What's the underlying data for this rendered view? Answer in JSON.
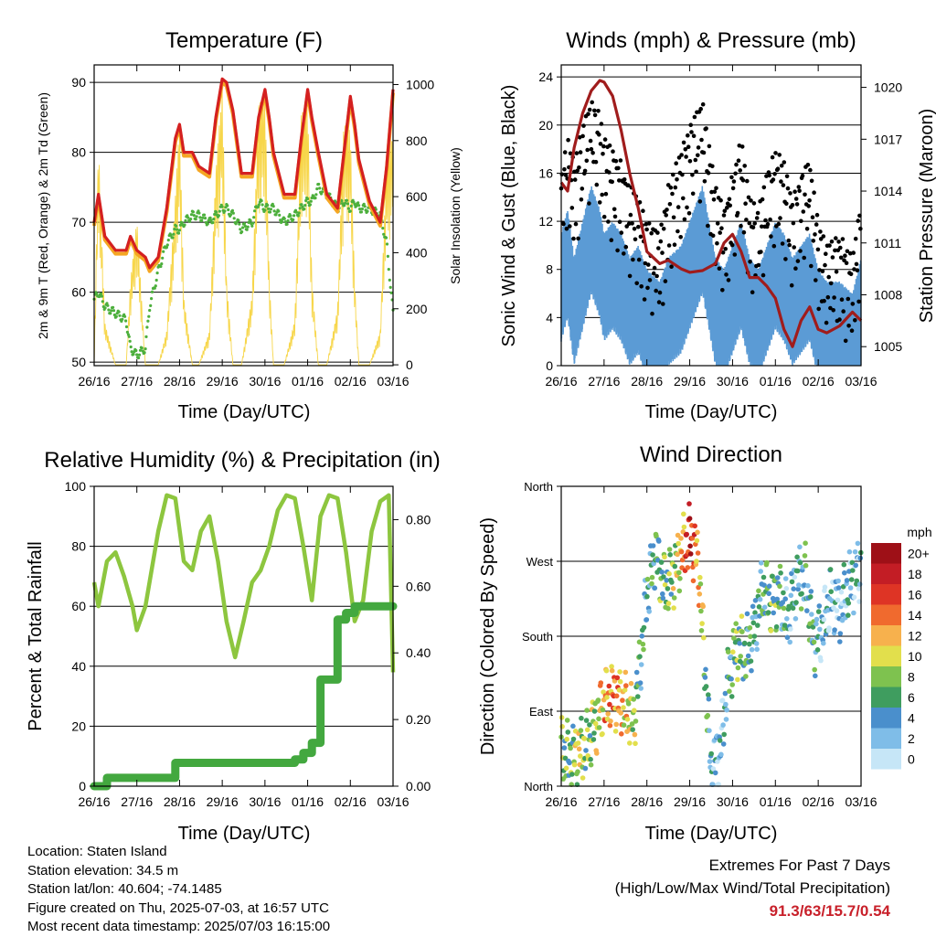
{
  "colors": {
    "temp_red": "#d42020",
    "temp_orange": "#f5a623",
    "dewpoint_green": "#4caf3c",
    "solar_yellow": "#f7d64a",
    "wind_blue": "#5b9bd5",
    "gust_black": "#000000",
    "pressure_maroon": "#a01c1c",
    "rh_lightgreen": "#8dc63f",
    "precip_green": "#43a83f",
    "extremes_red": "#c8202a"
  },
  "time_ticks": [
    "26/16",
    "27/16",
    "28/16",
    "29/16",
    "30/16",
    "01/16",
    "02/16",
    "03/16"
  ],
  "info": {
    "location": "Location: Staten Island",
    "elevation": "Station elevation: 34.5 m",
    "latlon": "Station lat/lon: 40.604; -74.1485",
    "created": "Figure created on Thu, 2025-07-03, at 16:57 UTC",
    "recent": "Most recent data timestamp: 2025/07/03 16:15:00"
  },
  "extremes": {
    "title": "Extremes For Past 7 Days",
    "subtitle": "(High/Low/Max Wind/Total Precipitation)",
    "values": "91.3/63/15.7/0.54"
  },
  "chart_data": [
    {
      "type": "line",
      "title": "Temperature (F)",
      "xlabel": "Time (Day/UTC)",
      "ylabel": "2m & 9m T (Red, Orange) & 2m Td (Green)",
      "y2label": "Solar Insolation (Yellow)",
      "ylim": [
        49.5,
        92.5
      ],
      "y2lim": [
        -3,
        1070
      ],
      "yticks": [
        "50",
        "60",
        "70",
        "80",
        "90"
      ],
      "y2ticks": [
        "0",
        "200",
        "400",
        "600",
        "800",
        "1000"
      ],
      "x": [
        0,
        0.1,
        0.25,
        0.5,
        0.75,
        0.85,
        1.0,
        1.2,
        1.3,
        1.5,
        1.7,
        1.9,
        2.0,
        2.1,
        2.3,
        2.45,
        2.7,
        2.85,
        3.0,
        3.1,
        3.25,
        3.45,
        3.7,
        3.85,
        4.0,
        4.1,
        4.2,
        4.45,
        4.7,
        4.85,
        5.0,
        5.1,
        5.25,
        5.45,
        5.7,
        5.85,
        6.0,
        6.1,
        6.2,
        6.45,
        6.7,
        6.85,
        7.0
      ],
      "series": [
        {
          "name": "2m T",
          "values": [
            70,
            74,
            68,
            66,
            66,
            68,
            66,
            65,
            63.5,
            65,
            72,
            82,
            84,
            80,
            80,
            78,
            77,
            85,
            90.5,
            90,
            86,
            77,
            77,
            85,
            89,
            85,
            80,
            74,
            74,
            82,
            89,
            85,
            80,
            74,
            72,
            80,
            88,
            84,
            79,
            73,
            70,
            78,
            89
          ]
        },
        {
          "name": "9m T",
          "values": [
            69.5,
            73.5,
            67.5,
            65.5,
            65.5,
            67.5,
            65.5,
            64.5,
            63,
            64.5,
            71.5,
            81.5,
            83.5,
            79.5,
            79.5,
            77.5,
            76.5,
            84.5,
            90,
            89.5,
            85.5,
            76.5,
            76.5,
            84.5,
            88.5,
            84.5,
            79.5,
            73.5,
            73.5,
            81.5,
            88.5,
            84.5,
            79.5,
            73.5,
            71.5,
            79.5,
            87.5,
            83.5,
            78.5,
            72.5,
            69.5,
            77.5,
            88.5
          ]
        },
        {
          "name": "2m Td",
          "values": [
            59,
            60,
            58,
            57,
            56,
            52,
            51,
            52,
            58,
            63,
            67,
            69,
            69,
            70,
            71,
            71,
            70,
            71,
            72,
            72,
            71,
            69,
            70,
            73,
            72,
            72,
            72,
            70,
            71,
            72,
            73,
            73,
            75,
            74,
            72,
            73,
            72,
            73,
            72,
            72,
            71,
            67,
            57
          ]
        },
        {
          "name": "Solar",
          "values": [
            0,
            800,
            150,
            0,
            0,
            300,
            520,
            0,
            0,
            0,
            120,
            600,
            880,
            240,
            0,
            0,
            120,
            700,
            1000,
            300,
            0,
            0,
            250,
            930,
            960,
            320,
            0,
            0,
            160,
            900,
            940,
            300,
            0,
            0,
            200,
            880,
            840,
            300,
            0,
            0,
            120,
            740,
            840
          ]
        }
      ]
    },
    {
      "type": "line",
      "title": "Winds (mph) & Pressure (mb)",
      "xlabel": "Time (Day/UTC)",
      "ylabel": "Sonic Wind & Gust (Blue, Black)",
      "y2label": "Station Pressure (Maroon)",
      "ylim": [
        0,
        25
      ],
      "y2lim": [
        1003.9,
        1021.3
      ],
      "yticks": [
        "0",
        "4",
        "8",
        "12",
        "16",
        "20",
        "24"
      ],
      "y2ticks": [
        "1005",
        "1008",
        "1011",
        "1014",
        "1017",
        "1020"
      ],
      "x": [
        0,
        0.15,
        0.3,
        0.5,
        0.7,
        0.9,
        1.0,
        1.2,
        1.4,
        1.6,
        1.8,
        2.0,
        2.3,
        2.5,
        2.8,
        3.0,
        3.3,
        3.6,
        3.8,
        4.0,
        4.2,
        4.4,
        4.6,
        4.8,
        5.0,
        5.2,
        5.4,
        5.6,
        5.8,
        6.0,
        6.2,
        6.5,
        6.8,
        7.0
      ],
      "series": [
        {
          "name": "Sonic Wind",
          "values": [
            8,
            10,
            6,
            9,
            12,
            10,
            8,
            9,
            8,
            6,
            7,
            5,
            4,
            6,
            7,
            9,
            12,
            6,
            5,
            7,
            9,
            6,
            5,
            7,
            9,
            8,
            6,
            7,
            8,
            5,
            4,
            4,
            3,
            6
          ]
        },
        {
          "name": "Gust",
          "values": [
            12,
            15,
            13,
            16,
            18,
            17,
            15,
            14,
            13,
            11,
            10,
            8,
            7,
            11,
            14,
            16,
            18,
            11,
            9,
            12,
            15,
            10,
            9,
            12,
            14,
            13,
            10,
            12,
            13,
            8,
            6,
            7,
            5,
            10
          ]
        },
        {
          "name": "Station Pressure",
          "values": [
            1014.5,
            1014.0,
            1016.5,
            1018.5,
            1019.8,
            1020.4,
            1020.3,
            1019.5,
            1017.5,
            1015.0,
            1013.0,
            1010.5,
            1009.8,
            1010.0,
            1009.5,
            1009.3,
            1009.4,
            1009.8,
            1011.0,
            1011.5,
            1010.5,
            1009.0,
            1009.0,
            1008.5,
            1007.8,
            1006.0,
            1005.0,
            1006.5,
            1007.3,
            1006.0,
            1005.8,
            1006.2,
            1007.0,
            1006.5
          ]
        }
      ]
    },
    {
      "type": "line",
      "title": "Relative Humidity (%) & Precipitation (in)",
      "xlabel": "Time (Day/UTC)",
      "ylabel": "Percent & Total Rainfall",
      "ylim": [
        0,
        100
      ],
      "y2lim": [
        0,
        0.9
      ],
      "yticks": [
        "0",
        "20",
        "40",
        "60",
        "80",
        "100"
      ],
      "y2ticks": [
        "0.00",
        "0.20",
        "0.40",
        "0.60",
        "0.80"
      ],
      "x": [
        0,
        0.1,
        0.3,
        0.5,
        0.7,
        0.9,
        1.0,
        1.2,
        1.5,
        1.7,
        1.9,
        2.1,
        2.3,
        2.5,
        2.7,
        2.9,
        3.1,
        3.3,
        3.5,
        3.7,
        3.9,
        4.1,
        4.3,
        4.5,
        4.7,
        4.9,
        5.1,
        5.3,
        5.5,
        5.7,
        5.9,
        6.1,
        6.3,
        6.5,
        6.7,
        6.9,
        7.0
      ],
      "series": [
        {
          "name": "Relative Humidity",
          "values": [
            68,
            60,
            75,
            78,
            70,
            60,
            52,
            60,
            85,
            97,
            96,
            75,
            72,
            85,
            90,
            75,
            55,
            43,
            55,
            68,
            72,
            80,
            92,
            97,
            96,
            80,
            62,
            90,
            97,
            96,
            78,
            55,
            62,
            85,
            95,
            97,
            38
          ]
        },
        {
          "name": "Total Rainfall",
          "values": [
            0,
            0,
            0.025,
            0.025,
            0.025,
            0.025,
            0.025,
            0.025,
            0.025,
            0.025,
            0.07,
            0.07,
            0.07,
            0.07,
            0.07,
            0.07,
            0.07,
            0.07,
            0.07,
            0.07,
            0.07,
            0.07,
            0.07,
            0.07,
            0.08,
            0.1,
            0.13,
            0.32,
            0.32,
            0.5,
            0.52,
            0.54,
            0.54,
            0.54,
            0.54,
            0.54,
            0.54
          ]
        }
      ]
    },
    {
      "type": "scatter",
      "title": "Wind Direction",
      "xlabel": "Time (Day/UTC)",
      "ylabel": "Direction (Colored By Speed)",
      "yticks": [
        "North",
        "East",
        "South",
        "West",
        "North"
      ],
      "ylim": [
        0,
        360
      ],
      "colorbar": {
        "title": "mph",
        "labels": [
          "0",
          "2",
          "4",
          "6",
          "8",
          "10",
          "12",
          "14",
          "16",
          "18",
          "20+"
        ],
        "colors": [
          "#c6e6f7",
          "#7fbde8",
          "#4a8fcc",
          "#3f9d5f",
          "#7ec24f",
          "#e2df4c",
          "#f7b14d",
          "#f06a2e",
          "#de3425",
          "#c31d25",
          "#9e1017"
        ]
      },
      "x": [
        0.0,
        0.2,
        0.4,
        0.6,
        0.8,
        1.0,
        1.2,
        1.5,
        1.7,
        1.85,
        2.0,
        2.2,
        2.4,
        2.6,
        2.8,
        3.0,
        3.2,
        3.5,
        3.7,
        3.9,
        4.1,
        4.3,
        4.5,
        4.7,
        4.9,
        5.1,
        5.3,
        5.5,
        5.7,
        5.9,
        6.1,
        6.3,
        6.5,
        6.7,
        6.9,
        7.0
      ],
      "series": [
        {
          "name": "Direction",
          "values": [
            45,
            35,
            40,
            50,
            75,
            100,
            110,
            95,
            80,
            150,
            230,
            280,
            240,
            250,
            280,
            300,
            270,
            20,
            40,
            130,
            170,
            160,
            185,
            240,
            220,
            230,
            200,
            250,
            250,
            170,
            190,
            230,
            210,
            240,
            255,
            265
          ]
        },
        {
          "name": "Speed",
          "values": [
            8,
            6,
            10,
            7,
            9,
            12,
            14,
            11,
            9,
            5,
            4,
            6,
            7,
            8,
            11,
            18,
            12,
            3,
            2,
            5,
            8,
            6,
            4,
            5,
            7,
            6,
            3,
            4,
            5,
            6,
            2,
            3,
            2,
            4,
            3,
            2
          ]
        }
      ]
    }
  ]
}
